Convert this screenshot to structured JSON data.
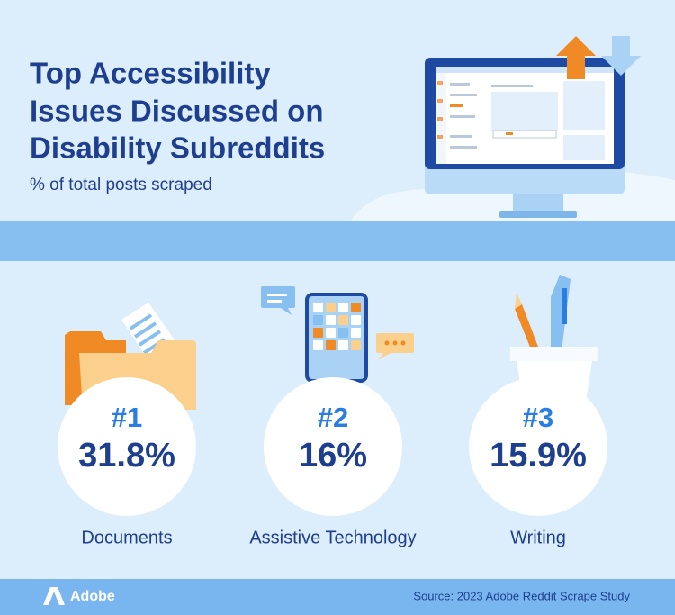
{
  "header": {
    "title_lines": [
      "Top Accessibility",
      "Issues Discussed on",
      "Disability Subreddits"
    ],
    "subtitle": "% of total posts scraped"
  },
  "items": [
    {
      "rank": "#1",
      "value": "31.8%",
      "label": "Documents"
    },
    {
      "rank": "#2",
      "value": "16%",
      "label": "Assistive Technology"
    },
    {
      "rank": "#3",
      "value": "15.9%",
      "label": "Writing"
    }
  ],
  "footer": {
    "brand": "Adobe",
    "source": "Source: 2023 Adobe Reddit Scrape Study"
  }
}
